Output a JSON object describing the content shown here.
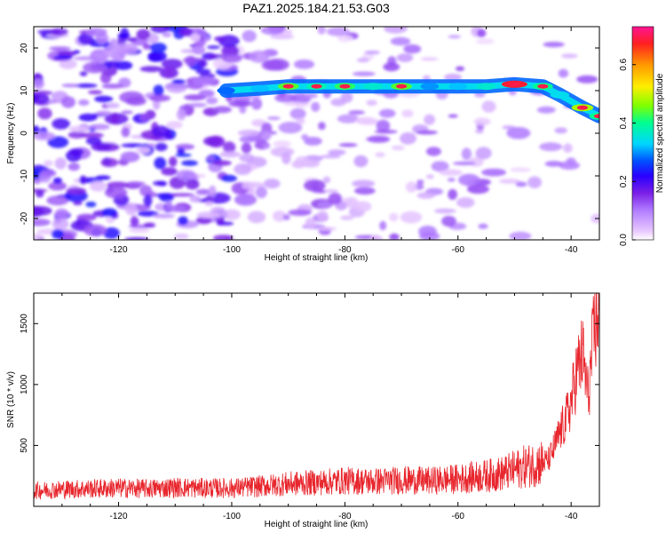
{
  "chart_data": [
    {
      "type": "heatmap",
      "title": "PAZ1.2025.184.21.53.G03",
      "xlabel": "Height of straight line (km)",
      "ylabel": "Frequency (Hz)",
      "xlim": [
        -135,
        -35
      ],
      "ylim": [
        -25,
        25
      ],
      "x_ticks": [
        -120,
        -100,
        -80,
        -60,
        -40
      ],
      "y_ticks": [
        -20,
        -10,
        0,
        10,
        20
      ],
      "colorbar": {
        "label": "Normalized spectral amplitude",
        "range": [
          0.0,
          0.73
        ],
        "ticks": [
          0.0,
          0.2,
          0.4,
          0.6
        ],
        "colors": [
          "#ffffff",
          "#e9c9ff",
          "#b07bff",
          "#7a1fe6",
          "#2a00ff",
          "#0050ff",
          "#00d5ff",
          "#00ff90",
          "#80ff00",
          "#ffee00",
          "#ff9900",
          "#ff2020",
          "#ff1493"
        ]
      },
      "ridge": {
        "x": [
          -101,
          -95,
          -90,
          -85,
          -80,
          -75,
          -70,
          -65,
          -60,
          -55,
          -50,
          -45,
          -42,
          -38,
          -35
        ],
        "y": [
          10,
          10.5,
          11,
          11,
          11,
          11,
          11,
          11,
          11,
          11,
          11.5,
          11,
          9,
          6,
          4
        ],
        "amplitude": [
          0.28,
          0.32,
          0.44,
          0.38,
          0.42,
          0.36,
          0.44,
          0.3,
          0.32,
          0.36,
          0.68,
          0.4,
          0.34,
          0.48,
          0.4
        ]
      }
    },
    {
      "type": "line",
      "xlabel": "Height of straight line (km)",
      "ylabel": "SNR (10 * v/v)",
      "xlim": [
        -135,
        -35
      ],
      "ylim": [
        0,
        1750
      ],
      "x_ticks": [
        -120,
        -100,
        -80,
        -60,
        -40
      ],
      "y_ticks": [
        500,
        1000,
        1500
      ],
      "series": [
        {
          "color": "#e8262d",
          "x": [
            -135,
            -130,
            -125,
            -120,
            -115,
            -110,
            -105,
            -100,
            -95,
            -90,
            -85,
            -80,
            -75,
            -70,
            -65,
            -60,
            -55,
            -52,
            -50,
            -48,
            -46,
            -44,
            -43,
            -42,
            -41,
            -40,
            -39,
            -38,
            -37,
            -36,
            -35
          ],
          "y": [
            130,
            140,
            145,
            150,
            145,
            155,
            150,
            150,
            165,
            185,
            195,
            210,
            205,
            215,
            210,
            225,
            250,
            270,
            300,
            330,
            350,
            380,
            480,
            600,
            700,
            850,
            1100,
            1250,
            900,
            1400,
            1650
          ]
        }
      ]
    }
  ]
}
